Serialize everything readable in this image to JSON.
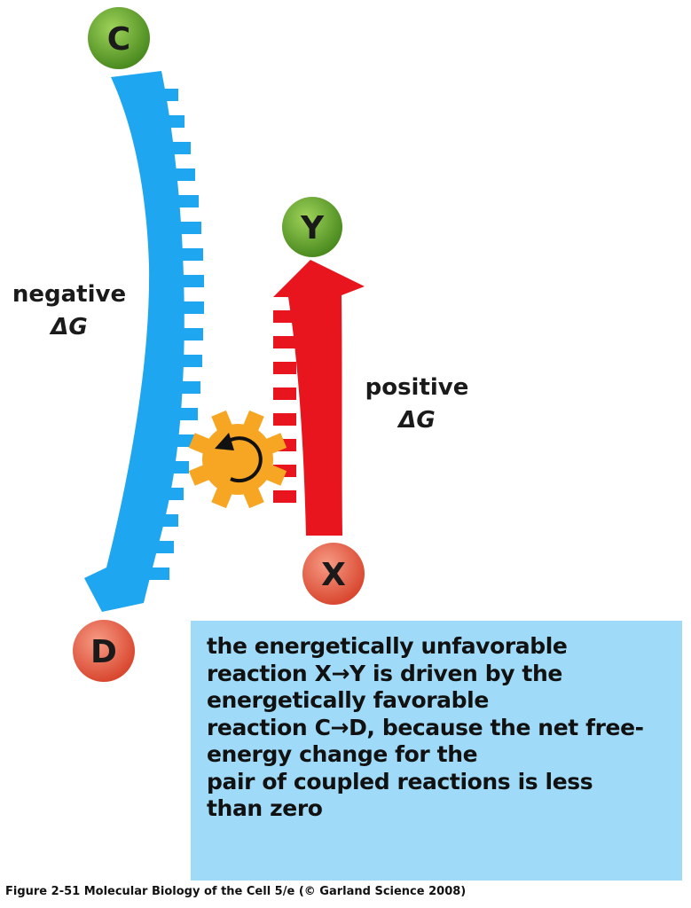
{
  "nodes": {
    "c": "C",
    "d": "D",
    "x": "X",
    "y": "Y"
  },
  "labels": {
    "negative_line1": "negative",
    "negative_line2": "ΔG",
    "positive_line1": "positive",
    "positive_line2": "ΔG"
  },
  "info_box": {
    "lines": [
      "the energetically unfavorable",
      "reaction X→Y is driven by the",
      "energetically favorable",
      "reaction C→D, because the net free-",
      "energy change for the",
      "pair of coupled reactions is less",
      "than zero"
    ]
  },
  "caption": "Figure 2-51  Molecular Biology of the Cell 5/e (© Garland Science 2008)",
  "colors": {
    "blue_arrow": "#1ea6f0",
    "red_arrow": "#e8141e",
    "gear": "#f7a623",
    "green_node": "#5f9e28",
    "red_node": "#e0503f",
    "info_box": "#9fdbf8"
  },
  "icons": {
    "gear": "gear-icon",
    "rotation": "rotate-arrow-icon"
  }
}
